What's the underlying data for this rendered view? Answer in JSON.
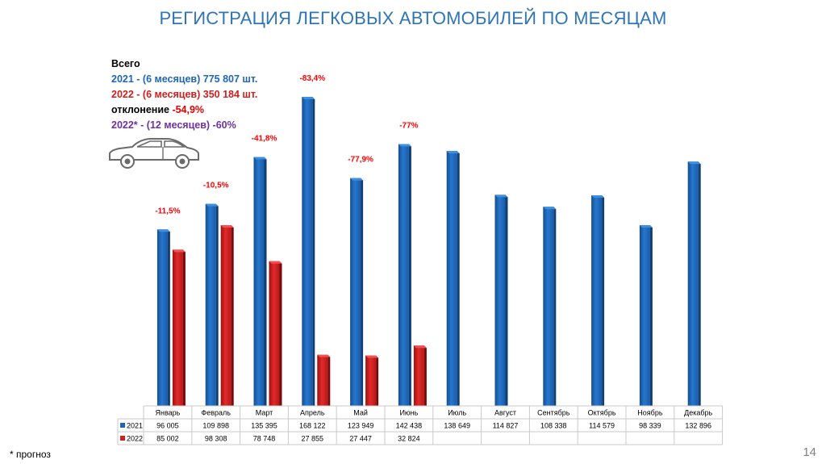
{
  "title": "РЕГИСТРАЦИЯ ЛЕГКОВЫХ АВТОМОБИЛЕЙ ПО МЕСЯЦАМ",
  "summary": {
    "heading": "Всего",
    "line_2021": "2021 - (6 месяцев) 775 807 шт.",
    "line_2022": "2022 - (6 месяцев) 350 184 шт.",
    "deviation_label": "отклонение ",
    "deviation_value": "-54,9%",
    "forecast_line": "2022* - (12 месяцев) -60%"
  },
  "icons": {
    "car": "car-outline-icon"
  },
  "colors": {
    "s2021": "#1f66b5",
    "s2022": "#d21e1e",
    "deviation": "#e00000",
    "forecast": "#7030a0",
    "title": "#2e75b6"
  },
  "footnote": "* прогноз",
  "page_number": "14",
  "chart_data": {
    "type": "bar",
    "categories": [
      "Январь",
      "Февраль",
      "Март",
      "Апрель",
      "Май",
      "Июнь",
      "Июль",
      "Август",
      "Сентябрь",
      "Октябрь",
      "Ноябрь",
      "Декабрь"
    ],
    "series": [
      {
        "name": "2021",
        "values": [
          96005,
          109898,
          135395,
          168122,
          123949,
          142438,
          138649,
          114827,
          108338,
          114579,
          98339,
          132896
        ]
      },
      {
        "name": "2022",
        "values": [
          85002,
          98308,
          78748,
          27855,
          27447,
          32824,
          null,
          null,
          null,
          null,
          null,
          null
        ]
      }
    ],
    "table": {
      "2021": [
        "96 005",
        "109 898",
        "135 395",
        "168 122",
        "123 949",
        "142 438",
        "138 649",
        "114 827",
        "108 338",
        "114 579",
        "98 339",
        "132 896"
      ],
      "2022": [
        "85 002",
        "98 308",
        "78 748",
        "27 855",
        "27 447",
        "32 824",
        "",
        "",
        "",
        "",
        "",
        ""
      ]
    },
    "annotations": [
      "-11,5%",
      "-10,5%",
      "-41,8%",
      "-83,4%",
      "-77,9%",
      "-77%"
    ],
    "ylim": [
      0,
      180000
    ],
    "grid": false,
    "legend": "data-table"
  }
}
